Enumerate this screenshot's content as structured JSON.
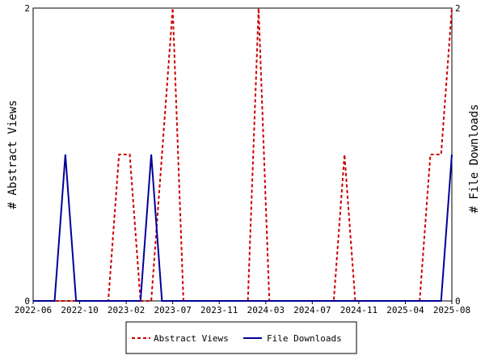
{
  "chart_data": {
    "type": "line",
    "y_left_label": "# Abstract Views",
    "y_right_label": "# File Downloads",
    "y_left_range": [
      0,
      2
    ],
    "y_right_range": [
      0,
      2
    ],
    "y_left_ticks": [
      "0",
      "2"
    ],
    "y_right_ticks": [
      "0",
      "2"
    ],
    "x_ticks": [
      "2022-06",
      "2022-10",
      "2023-02",
      "2023-07",
      "2023-11",
      "2024-03",
      "2024-07",
      "2024-11",
      "2025-04",
      "2025-08"
    ],
    "x_count": 40,
    "grid": false,
    "legend_position": "bottom",
    "series": [
      {
        "name": "Abstract Views",
        "axis": "left",
        "color": "#cc0000",
        "style": "dashed",
        "values": [
          0,
          0,
          0,
          0,
          0,
          0,
          0,
          0,
          1,
          1,
          0,
          0,
          1,
          2,
          0,
          0,
          0,
          0,
          0,
          0,
          0,
          2,
          0,
          0,
          0,
          0,
          0,
          0,
          0,
          1,
          0,
          0,
          0,
          0,
          0,
          0,
          0,
          1,
          1,
          2
        ]
      },
      {
        "name": "File Downloads",
        "axis": "right",
        "color": "#000099",
        "style": "solid",
        "values": [
          0,
          0,
          0,
          1,
          0,
          0,
          0,
          0,
          0,
          0,
          0,
          1,
          0,
          0,
          0,
          0,
          0,
          0,
          0,
          0,
          0,
          0,
          0,
          0,
          0,
          0,
          0,
          0,
          0,
          0,
          0,
          0,
          0,
          0,
          0,
          0,
          0,
          0,
          0,
          1
        ]
      }
    ]
  }
}
